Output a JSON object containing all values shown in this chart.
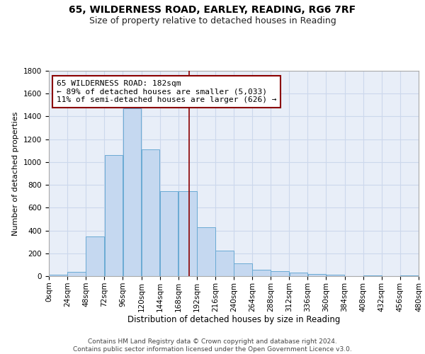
{
  "title1": "65, WILDERNESS ROAD, EARLEY, READING, RG6 7RF",
  "title2": "Size of property relative to detached houses in Reading",
  "xlabel": "Distribution of detached houses by size in Reading",
  "ylabel": "Number of detached properties",
  "bin_edges": [
    0,
    24,
    48,
    72,
    96,
    120,
    144,
    168,
    192,
    216,
    240,
    264,
    288,
    312,
    336,
    360,
    384,
    408,
    432,
    456,
    480
  ],
  "bar_heights": [
    10,
    35,
    350,
    1060,
    1470,
    1110,
    745,
    745,
    430,
    225,
    110,
    55,
    45,
    30,
    20,
    15,
    0,
    5,
    0,
    5
  ],
  "bar_color": "#c5d8f0",
  "bar_edge_color": "#6aaad4",
  "grid_color": "#ccd8ec",
  "background_color": "#e8eef8",
  "vline_x": 182,
  "vline_color": "#8b0000",
  "annotation_text": "65 WILDERNESS ROAD: 182sqm\n← 89% of detached houses are smaller (5,033)\n11% of semi-detached houses are larger (626) →",
  "annotation_box_color": "#8b0000",
  "ylim": [
    0,
    1800
  ],
  "yticks": [
    0,
    200,
    400,
    600,
    800,
    1000,
    1200,
    1400,
    1600,
    1800
  ],
  "footer_text": "Contains HM Land Registry data © Crown copyright and database right 2024.\nContains public sector information licensed under the Open Government Licence v3.0.",
  "title1_fontsize": 10,
  "title2_fontsize": 9,
  "xlabel_fontsize": 8.5,
  "ylabel_fontsize": 8,
  "tick_fontsize": 7.5,
  "annotation_fontsize": 8,
  "footer_fontsize": 6.5
}
